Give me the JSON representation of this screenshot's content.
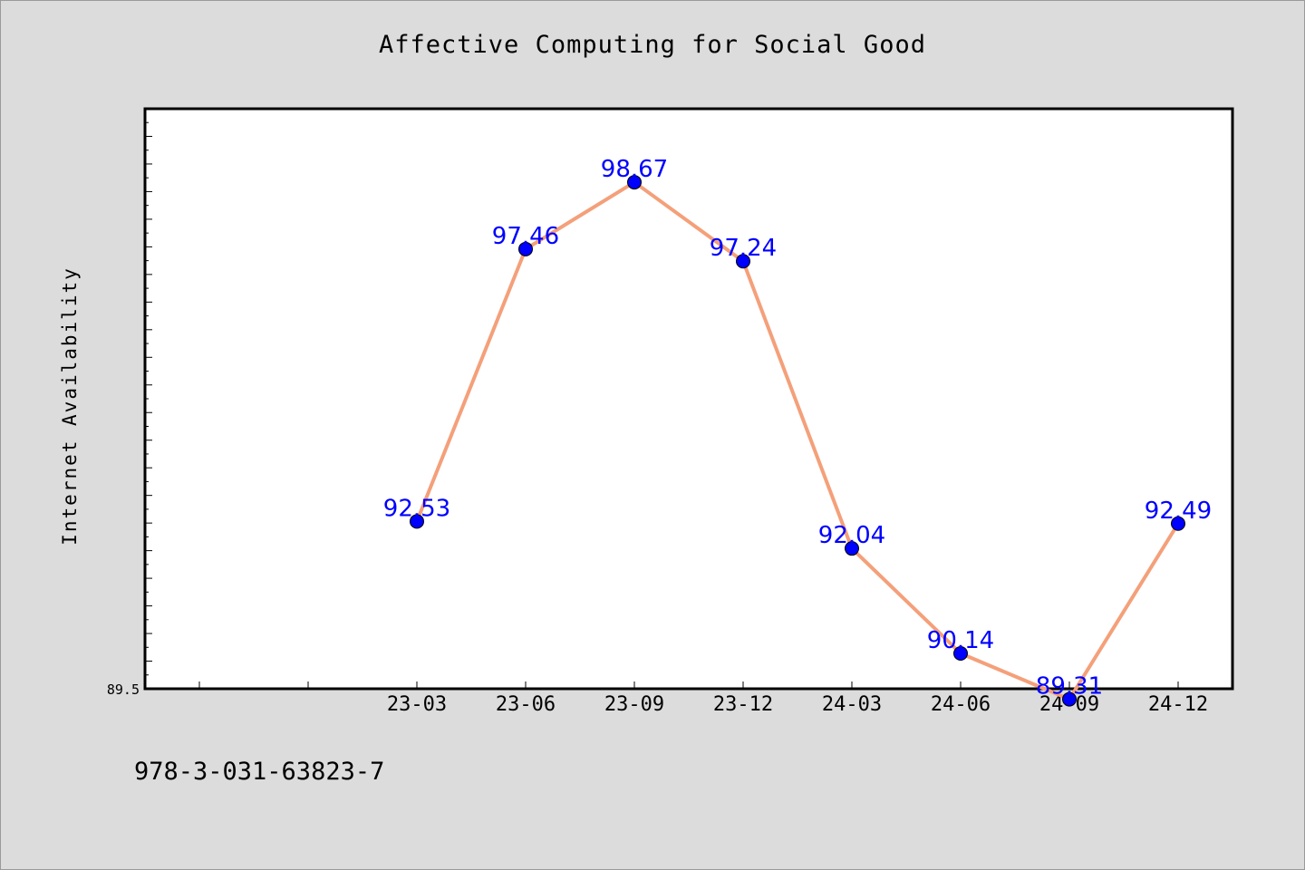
{
  "chart_data": {
    "type": "line",
    "title": "Affective Computing for Social Good",
    "xlabel": "",
    "ylabel": "Internet Availability",
    "categories": [
      "23-03",
      "23-06",
      "23-09",
      "23-12",
      "24-03",
      "24-06",
      "24-09",
      "24-12"
    ],
    "series": [
      {
        "values": [
          92.53,
          97.46,
          98.67,
          97.24,
          92.04,
          90.14,
          89.31,
          92.49
        ],
        "labels": [
          "92.53",
          "97.46",
          "98.67",
          "97.24",
          "92.04",
          "90.14",
          "89.31",
          "92.49"
        ]
      }
    ],
    "ylim": [
      89.5,
      100.0
    ],
    "y_tick_labels": [
      "89.5"
    ],
    "grid": false,
    "line_color": "#f4a07a",
    "marker_color": "#0000ff",
    "label_color": "#0000ff"
  },
  "footer": {
    "code": "978-3-031-63823-7"
  }
}
